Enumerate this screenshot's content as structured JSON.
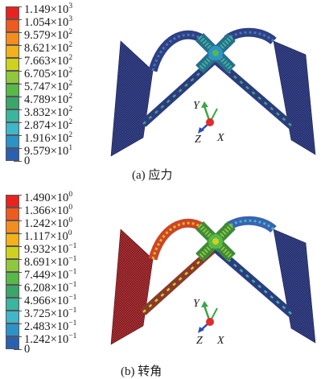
{
  "panel_a": {
    "caption": "(a) 应力",
    "legend": {
      "labels": [
        {
          "m": "1.149×10",
          "e": "3"
        },
        {
          "m": "1.054×10",
          "e": "3"
        },
        {
          "m": "9.579×10",
          "e": "2"
        },
        {
          "m": "8.621×10",
          "e": "2"
        },
        {
          "m": "7.663×10",
          "e": "2"
        },
        {
          "m": "6.705×10",
          "e": "2"
        },
        {
          "m": "5.747×10",
          "e": "2"
        },
        {
          "m": "4.789×10",
          "e": "2"
        },
        {
          "m": "3.832×10",
          "e": "2"
        },
        {
          "m": "2.874×10",
          "e": "2"
        },
        {
          "m": "1.916×10",
          "e": "2"
        },
        {
          "m": "9.579×10",
          "e": "1"
        },
        {
          "m": "0",
          "e": ""
        }
      ],
      "colors": [
        "#e8231f",
        "#ef5a1f",
        "#f58d1e",
        "#f3b21a",
        "#cfd21c",
        "#8fc83a",
        "#57b947",
        "#3aa66a",
        "#3bb59e",
        "#3fb6c9",
        "#2c93c9",
        "#2b5fb0"
      ]
    },
    "axes": {
      "y": "Y",
      "z": "Z",
      "x": "X"
    }
  },
  "panel_b": {
    "caption": "(b) 转角",
    "legend": {
      "labels": [
        {
          "m": "1.490×10",
          "e": "0"
        },
        {
          "m": "1.366×10",
          "e": "0"
        },
        {
          "m": "1.242×10",
          "e": "0"
        },
        {
          "m": "1.117×10",
          "e": "0"
        },
        {
          "m": "9.932×10",
          "e": "−1"
        },
        {
          "m": "8.691×10",
          "e": "−1"
        },
        {
          "m": "7.449×10",
          "e": "−1"
        },
        {
          "m": "6.208×10",
          "e": "−1"
        },
        {
          "m": "4.966×10",
          "e": "−1"
        },
        {
          "m": "3.725×10",
          "e": "−1"
        },
        {
          "m": "2.483×10",
          "e": "−1"
        },
        {
          "m": "1.242×10",
          "e": "−1"
        },
        {
          "m": "0",
          "e": ""
        }
      ],
      "colors": [
        "#e8231f",
        "#ef5a1f",
        "#f58d1e",
        "#f3b21a",
        "#cfd21c",
        "#8fc83a",
        "#57b947",
        "#3aa66a",
        "#3bb59e",
        "#3fb6c9",
        "#2c93c9",
        "#2b5fb0"
      ]
    },
    "axes": {
      "y": "Y",
      "z": "Z",
      "x": "X"
    }
  }
}
